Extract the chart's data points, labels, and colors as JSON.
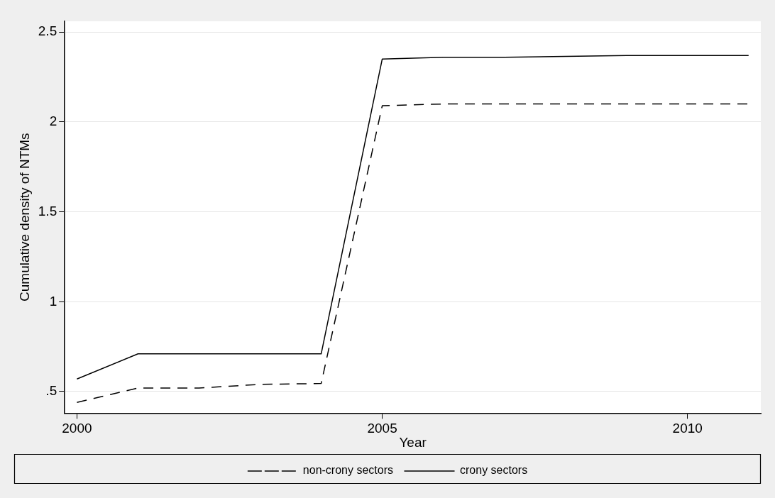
{
  "chart_data": {
    "type": "line",
    "xlabel": "Year",
    "ylabel": "Cumulative density of NTMs",
    "x": [
      2000,
      2001,
      2002,
      2003,
      2004,
      2005,
      2006,
      2007,
      2008,
      2009,
      2010,
      2011
    ],
    "series": [
      {
        "name": "non-crony sectors",
        "color": "#000000",
        "line_style": "dashed",
        "values": [
          0.44,
          0.52,
          0.52,
          0.54,
          0.545,
          2.09,
          2.1,
          2.1,
          2.1,
          2.1,
          2.1,
          2.1
        ]
      },
      {
        "name": "crony sectors",
        "color": "#000000",
        "line_style": "solid",
        "values": [
          0.57,
          0.71,
          0.71,
          0.71,
          0.71,
          2.35,
          2.36,
          2.36,
          2.365,
          2.37,
          2.37,
          2.37
        ]
      }
    ],
    "xlim": [
      1999.8,
      2011.2
    ],
    "xticks": [
      2000,
      2005,
      2010
    ],
    "ylim": [
      0.38,
      2.56
    ],
    "yticks": [
      {
        "value": 0.5,
        "label": ".5"
      },
      1,
      1.5,
      2,
      2.5
    ],
    "grid": "y",
    "legend": "bottom",
    "marker": "none"
  }
}
